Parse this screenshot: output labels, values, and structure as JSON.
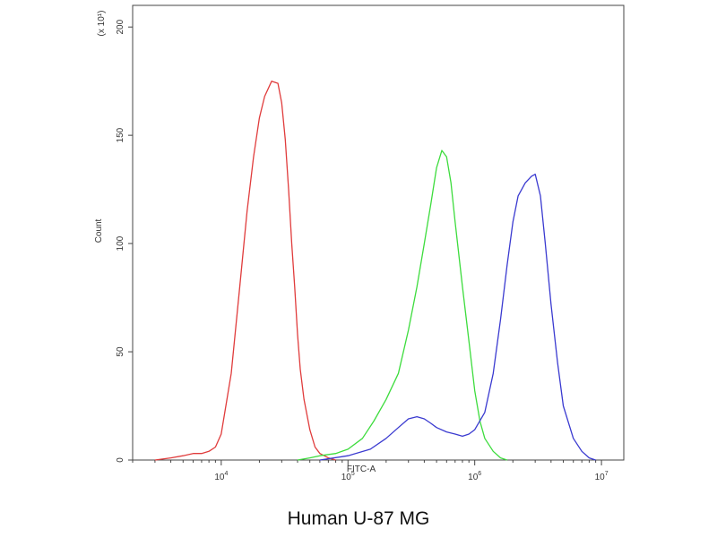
{
  "caption": "Human U-87 MG",
  "chart_data": {
    "type": "line",
    "title": "",
    "xlabel": "FITC-A",
    "ylabel": "Count",
    "y_multiplier": "(x 10¹)",
    "x_scale": "log",
    "xlim": [
      2000,
      15000000
    ],
    "ylim": [
      0,
      210
    ],
    "x_ticks": [
      {
        "value": 10000,
        "base": "10",
        "exp": "4"
      },
      {
        "value": 100000,
        "base": "10",
        "exp": "5"
      },
      {
        "value": 1000000,
        "base": "10",
        "exp": "6"
      },
      {
        "value": 10000000,
        "base": "10",
        "exp": "7"
      }
    ],
    "y_ticks": [
      0,
      50,
      100,
      150,
      200
    ],
    "grid": false,
    "legend": "none",
    "series": [
      {
        "color": "#e03c3c",
        "points": [
          [
            3000,
            0
          ],
          [
            4000,
            1
          ],
          [
            5000,
            2
          ],
          [
            6000,
            3
          ],
          [
            7000,
            3
          ],
          [
            8000,
            4
          ],
          [
            9000,
            6
          ],
          [
            10000,
            12
          ],
          [
            12000,
            40
          ],
          [
            14000,
            80
          ],
          [
            16000,
            115
          ],
          [
            18000,
            140
          ],
          [
            20000,
            158
          ],
          [
            22000,
            168
          ],
          [
            25000,
            175
          ],
          [
            28000,
            174
          ],
          [
            30000,
            165
          ],
          [
            32000,
            148
          ],
          [
            34000,
            125
          ],
          [
            36000,
            100
          ],
          [
            38000,
            80
          ],
          [
            40000,
            58
          ],
          [
            42000,
            42
          ],
          [
            45000,
            28
          ],
          [
            50000,
            14
          ],
          [
            55000,
            6
          ],
          [
            60000,
            3
          ],
          [
            70000,
            1
          ],
          [
            80000,
            0
          ]
        ]
      },
      {
        "color": "#3ddc3d",
        "points": [
          [
            40000,
            0
          ],
          [
            50000,
            1
          ],
          [
            60000,
            2
          ],
          [
            80000,
            3
          ],
          [
            100000,
            5
          ],
          [
            130000,
            10
          ],
          [
            160000,
            18
          ],
          [
            200000,
            28
          ],
          [
            250000,
            40
          ],
          [
            300000,
            60
          ],
          [
            350000,
            80
          ],
          [
            400000,
            100
          ],
          [
            450000,
            118
          ],
          [
            500000,
            135
          ],
          [
            550000,
            143
          ],
          [
            600000,
            140
          ],
          [
            650000,
            128
          ],
          [
            700000,
            110
          ],
          [
            800000,
            80
          ],
          [
            900000,
            55
          ],
          [
            1000000,
            32
          ],
          [
            1100000,
            18
          ],
          [
            1200000,
            10
          ],
          [
            1400000,
            4
          ],
          [
            1600000,
            1
          ],
          [
            1800000,
            0
          ]
        ]
      },
      {
        "color": "#3a3ad0",
        "points": [
          [
            60000,
            0
          ],
          [
            100000,
            2
          ],
          [
            150000,
            5
          ],
          [
            200000,
            10
          ],
          [
            250000,
            15
          ],
          [
            300000,
            19
          ],
          [
            350000,
            20
          ],
          [
            400000,
            19
          ],
          [
            450000,
            17
          ],
          [
            500000,
            15
          ],
          [
            600000,
            13
          ],
          [
            700000,
            12
          ],
          [
            800000,
            11
          ],
          [
            900000,
            12
          ],
          [
            1000000,
            14
          ],
          [
            1200000,
            22
          ],
          [
            1400000,
            40
          ],
          [
            1600000,
            65
          ],
          [
            1800000,
            90
          ],
          [
            2000000,
            110
          ],
          [
            2200000,
            122
          ],
          [
            2500000,
            128
          ],
          [
            2800000,
            131
          ],
          [
            3000000,
            132
          ],
          [
            3300000,
            122
          ],
          [
            3600000,
            100
          ],
          [
            4000000,
            72
          ],
          [
            4500000,
            45
          ],
          [
            5000000,
            25
          ],
          [
            6000000,
            10
          ],
          [
            7000000,
            4
          ],
          [
            8000000,
            1
          ],
          [
            9000000,
            0
          ]
        ]
      }
    ]
  }
}
